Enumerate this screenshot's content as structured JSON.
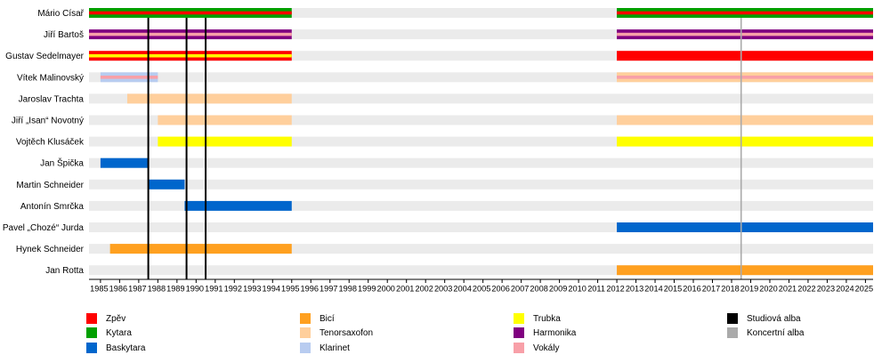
{
  "chart_data": {
    "type": "timeline",
    "years": [
      "1985",
      "1986",
      "1987",
      "1988",
      "1989",
      "1990",
      "1991",
      "1992",
      "1993",
      "1994",
      "1995",
      "1996",
      "1997",
      "1998",
      "1999",
      "2000",
      "2001",
      "2002",
      "2003",
      "2004",
      "2005",
      "2006",
      "2007",
      "2008",
      "2009",
      "2010",
      "2011",
      "2012",
      "2013",
      "2014",
      "2015",
      "2016",
      "2017",
      "2018",
      "2019",
      "2020",
      "2021",
      "2022",
      "2023",
      "2024",
      "2025"
    ],
    "x_range": [
      1984.4,
      2025.4
    ],
    "roles": {
      "vocals": {
        "label": "Zpěv",
        "color": "#ff0000"
      },
      "guitar": {
        "label": "Kytara",
        "color": "#00a000"
      },
      "bass": {
        "label": "Baskytara",
        "color": "#0066cc"
      },
      "drums": {
        "label": "Bicí",
        "color": "#ffa020"
      },
      "tenorsax": {
        "label": "Tenorsaxofon",
        "color": "#ffcf9c"
      },
      "clarinet": {
        "label": "Klarinet",
        "color": "#b8ccf0"
      },
      "trumpet": {
        "label": "Trubka",
        "color": "#ffff00"
      },
      "harmonica": {
        "label": "Harmonika",
        "color": "#800080"
      },
      "backing": {
        "label": "Vokály",
        "color": "#f8a0a8"
      }
    },
    "members": [
      {
        "name": "Mário Císař",
        "bars": [
          {
            "start": 1984.4,
            "end": 1995.0,
            "layers": [
              "guitar",
              "vocals"
            ]
          },
          {
            "start": 2012.0,
            "end": 2025.4,
            "layers": [
              "guitar",
              "vocals"
            ]
          }
        ]
      },
      {
        "name": "Jiří Bartoš",
        "bars": [
          {
            "start": 1984.4,
            "end": 1995.0,
            "layers": [
              "harmonica",
              "backing"
            ]
          },
          {
            "start": 2012.0,
            "end": 2025.4,
            "layers": [
              "harmonica",
              "backing"
            ]
          }
        ]
      },
      {
        "name": "Gustav Sedelmayer",
        "bars": [
          {
            "start": 1984.4,
            "end": 1995.0,
            "layers": [
              "vocals",
              "trumpet"
            ]
          },
          {
            "start": 2012.0,
            "end": 2025.4,
            "layers": [
              "vocals"
            ]
          }
        ]
      },
      {
        "name": "Vítek Malinovský",
        "bars": [
          {
            "start": 1985.0,
            "end": 1988.0,
            "layers": [
              "clarinet",
              "backing"
            ]
          },
          {
            "start": 2012.0,
            "end": 2025.4,
            "layers": [
              "tenorsax",
              "backing"
            ]
          }
        ]
      },
      {
        "name": "Jaroslav Trachta",
        "bars": [
          {
            "start": 1986.4,
            "end": 1995.0,
            "layers": [
              "tenorsax"
            ]
          }
        ]
      },
      {
        "name": "Jiří „Isan“ Novotný",
        "bars": [
          {
            "start": 1988.0,
            "end": 1995.0,
            "layers": [
              "tenorsax"
            ]
          },
          {
            "start": 2012.0,
            "end": 2025.4,
            "layers": [
              "tenorsax"
            ]
          }
        ]
      },
      {
        "name": "Vojtěch Klusáček",
        "bars": [
          {
            "start": 1988.0,
            "end": 1995.0,
            "layers": [
              "trumpet"
            ]
          },
          {
            "start": 2012.0,
            "end": 2025.4,
            "layers": [
              "trumpet"
            ]
          }
        ]
      },
      {
        "name": "Jan Špička",
        "bars": [
          {
            "start": 1985.0,
            "end": 1987.5,
            "layers": [
              "bass"
            ]
          }
        ]
      },
      {
        "name": "Martin Schneider",
        "bars": [
          {
            "start": 1987.5,
            "end": 1989.4,
            "layers": [
              "bass"
            ]
          }
        ]
      },
      {
        "name": "Antonín Smrčka",
        "bars": [
          {
            "start": 1989.4,
            "end": 1995.0,
            "layers": [
              "bass"
            ]
          }
        ]
      },
      {
        "name": "Pavel „Chozé“ Jurda",
        "bars": [
          {
            "start": 2012.0,
            "end": 2025.4,
            "layers": [
              "bass"
            ]
          }
        ]
      },
      {
        "name": "Hynek Schneider",
        "bars": [
          {
            "start": 1985.5,
            "end": 1995.0,
            "layers": [
              "drums"
            ]
          }
        ]
      },
      {
        "name": "Jan Rotta",
        "bars": [
          {
            "start": 2012.0,
            "end": 2025.4,
            "layers": [
              "drums"
            ]
          }
        ]
      }
    ],
    "events": [
      {
        "year": 1987.5,
        "type": "studio",
        "color": "#000000"
      },
      {
        "year": 1989.5,
        "type": "studio",
        "color": "#000000"
      },
      {
        "year": 1990.5,
        "type": "studio",
        "color": "#000000"
      },
      {
        "year": 2018.5,
        "type": "live",
        "color": "#aaaaaa"
      }
    ],
    "legend": [
      {
        "label": "Zpěv",
        "color": "#ff0000"
      },
      {
        "label": "Kytara",
        "color": "#00a000"
      },
      {
        "label": "Baskytara",
        "color": "#0066cc"
      },
      {
        "label": "Bicí",
        "color": "#ffa020"
      },
      {
        "label": "Tenorsaxofon",
        "color": "#ffcf9c"
      },
      {
        "label": "Klarinet",
        "color": "#b8ccf0"
      },
      {
        "label": "Trubka",
        "color": "#ffff00"
      },
      {
        "label": "Harmonika",
        "color": "#800080"
      },
      {
        "label": "Vokály",
        "color": "#f8a0a8"
      },
      {
        "label": "Studiová alba",
        "color": "#000000"
      },
      {
        "label": "Koncertní alba",
        "color": "#aaaaaa"
      }
    ],
    "legend_placement": "bottom",
    "row_background_color": "#ebebeb"
  }
}
